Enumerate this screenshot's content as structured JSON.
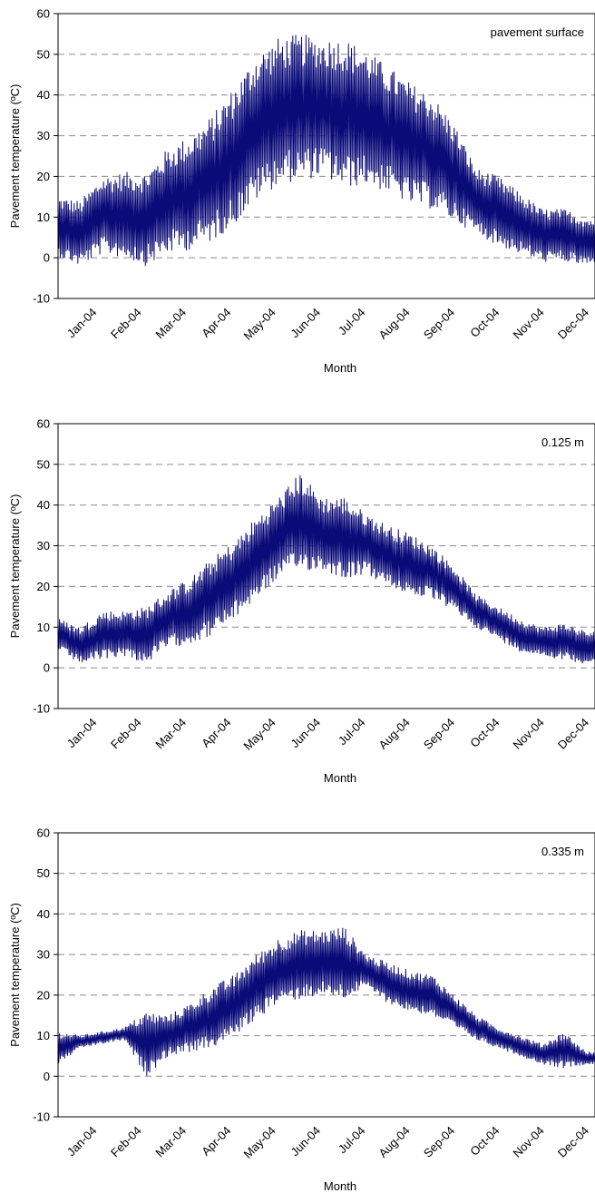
{
  "colors": {
    "series": "#0a0a78",
    "grid": "#8a8a8a"
  },
  "chart_data": [
    {
      "type": "line",
      "annotation": "pavement surface",
      "xlabel": "Month",
      "ylabel": "Pavement temperature  (ºC)",
      "ylim": [
        -10,
        60
      ],
      "yticks": [
        "60",
        "50",
        "40",
        "30",
        "20",
        "10",
        "0",
        "-10"
      ],
      "categories": [
        "Jan-04",
        "Feb-04",
        "Mar-04",
        "Apr-04",
        "May-04",
        "Jun-04",
        "Jul-04",
        "Aug-04",
        "Sep-04",
        "Oct-04",
        "Nov-04",
        "Dec-04"
      ],
      "grid": "horizontal-dashed",
      "series": [
        {
          "x": [
            1,
            15,
            30,
            45,
            60,
            75,
            90,
            105,
            120,
            135,
            150,
            165,
            180,
            195,
            210,
            225,
            240,
            255,
            270,
            285,
            300,
            315,
            330,
            345,
            360
          ],
          "y_min": [
            0,
            -2,
            1,
            0,
            -2,
            1,
            2,
            4,
            8,
            14,
            18,
            19,
            20,
            17,
            18,
            16,
            13,
            12,
            9,
            6,
            3,
            1,
            -1,
            -1,
            -2
          ],
          "y_max": [
            15,
            14,
            20,
            21,
            21,
            27,
            30,
            35,
            42,
            50,
            54,
            55,
            54,
            54,
            51,
            47,
            43,
            40,
            33,
            22,
            20,
            16,
            12,
            12,
            10
          ]
        }
      ]
    },
    {
      "type": "line",
      "annotation": "0.125 m",
      "xlabel": "Month",
      "ylabel": "Pavement temperature  (ºC)",
      "ylim": [
        -10,
        60
      ],
      "yticks": [
        "60",
        "50",
        "40",
        "30",
        "20",
        "10",
        "0",
        "-10"
      ],
      "categories": [
        "Jan-04",
        "Feb-04",
        "Mar-04",
        "Apr-04",
        "May-04",
        "Jun-04",
        "Jul-04",
        "Aug-04",
        "Sep-04",
        "Oct-04",
        "Nov-04",
        "Dec-04"
      ],
      "grid": "horizontal-dashed",
      "series": [
        {
          "x": [
            1,
            15,
            30,
            45,
            60,
            75,
            90,
            105,
            120,
            135,
            150,
            165,
            180,
            195,
            210,
            225,
            240,
            255,
            270,
            285,
            300,
            315,
            330,
            345,
            360
          ],
          "y_min": [
            4,
            1,
            2,
            3,
            1,
            5,
            6,
            8,
            12,
            17,
            22,
            24,
            24,
            22,
            23,
            20,
            18,
            17,
            14,
            10,
            7,
            4,
            3,
            2,
            1
          ],
          "y_max": [
            12,
            10,
            14,
            14,
            15,
            19,
            22,
            27,
            31,
            37,
            42,
            48,
            42,
            42,
            38,
            35,
            33,
            30,
            25,
            18,
            15,
            12,
            10,
            11,
            9
          ]
        }
      ]
    },
    {
      "type": "line",
      "annotation": "0.335 m",
      "xlabel": "Month",
      "ylabel": "Pavement temperature  (ºC)",
      "ylim": [
        -10,
        60
      ],
      "yticks": [
        "60",
        "50",
        "40",
        "30",
        "20",
        "10",
        "0",
        "-10"
      ],
      "categories": [
        "Jan-04",
        "Feb-04",
        "Mar-04",
        "Apr-04",
        "May-04",
        "Jun-04",
        "Jul-04",
        "Aug-04",
        "Sep-04",
        "Oct-04",
        "Nov-04",
        "Dec-04"
      ],
      "grid": "horizontal-dashed",
      "series": [
        {
          "x": [
            1,
            15,
            30,
            45,
            60,
            75,
            90,
            105,
            120,
            135,
            150,
            165,
            180,
            195,
            210,
            225,
            240,
            255,
            270,
            285,
            300,
            315,
            330,
            345,
            360
          ],
          "y_min": [
            3,
            7,
            8,
            9,
            0,
            5,
            6,
            7,
            10,
            14,
            18,
            19,
            20,
            19,
            22,
            18,
            16,
            15,
            12,
            9,
            7,
            5,
            3,
            2,
            3
          ],
          "y_max": [
            11,
            10,
            11,
            12,
            16,
            15,
            18,
            22,
            25,
            30,
            34,
            36,
            36,
            37,
            30,
            28,
            26,
            25,
            20,
            15,
            12,
            10,
            8,
            11,
            6
          ]
        }
      ]
    }
  ]
}
